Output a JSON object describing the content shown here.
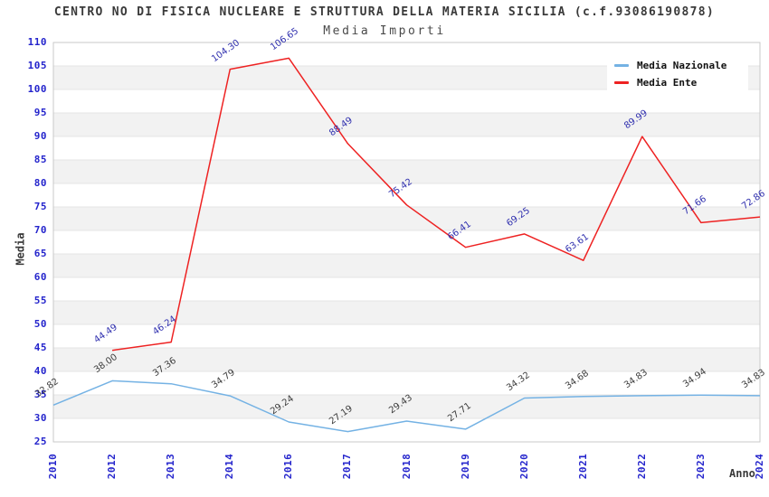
{
  "page": {
    "background": "#ffffff"
  },
  "chart_data": {
    "type": "line",
    "title": "CENTRO NO DI FISICA NUCLEARE E STRUTTURA DELLA MATERIA SICILIA (c.f.93086190878)",
    "subtitle": "Media Importi",
    "xlabel": "Anno",
    "ylabel": "Media",
    "ylim": [
      25,
      110
    ],
    "ytick_step": 5,
    "grid": "horizontal-bands-alternating",
    "band_color": "#f2f2f2",
    "gridline_color": "#e4e4e4",
    "plot_border_color": "#c9c9c9",
    "axis_tick_color": "#2424cc",
    "legend_position": "top-right",
    "categories": [
      "2010",
      "2012",
      "2013",
      "2014",
      "2016",
      "2017",
      "2018",
      "2019",
      "2020",
      "2021",
      "2022",
      "2023",
      "2024"
    ],
    "series": [
      {
        "name": "Media Nazionale",
        "color": "#74b2e4",
        "label_color": "#3d3d3d",
        "values": [
          32.82,
          38.0,
          37.36,
          34.79,
          29.24,
          27.19,
          29.43,
          27.71,
          34.32,
          34.68,
          34.83,
          34.94,
          34.83
        ],
        "labels": [
          "32.82",
          "38.00",
          "37.36",
          "34.79",
          "29.24",
          "27.19",
          "29.43",
          "27.71",
          "34.32",
          "34.68",
          "34.83",
          "34.94",
          "34.83"
        ]
      },
      {
        "name": "Media Ente",
        "color": "#ee2222",
        "label_color": "#2f2fae",
        "values": [
          null,
          44.49,
          46.24,
          104.3,
          106.65,
          88.49,
          75.42,
          66.41,
          69.25,
          63.61,
          89.99,
          71.66,
          72.86
        ],
        "labels": [
          "",
          "44.49",
          "46.24",
          "104.30",
          "106.65",
          "88.49",
          "75.42",
          "66.41",
          "69.25",
          "63.61",
          "89.99",
          "71.66",
          "72.86"
        ]
      }
    ]
  }
}
